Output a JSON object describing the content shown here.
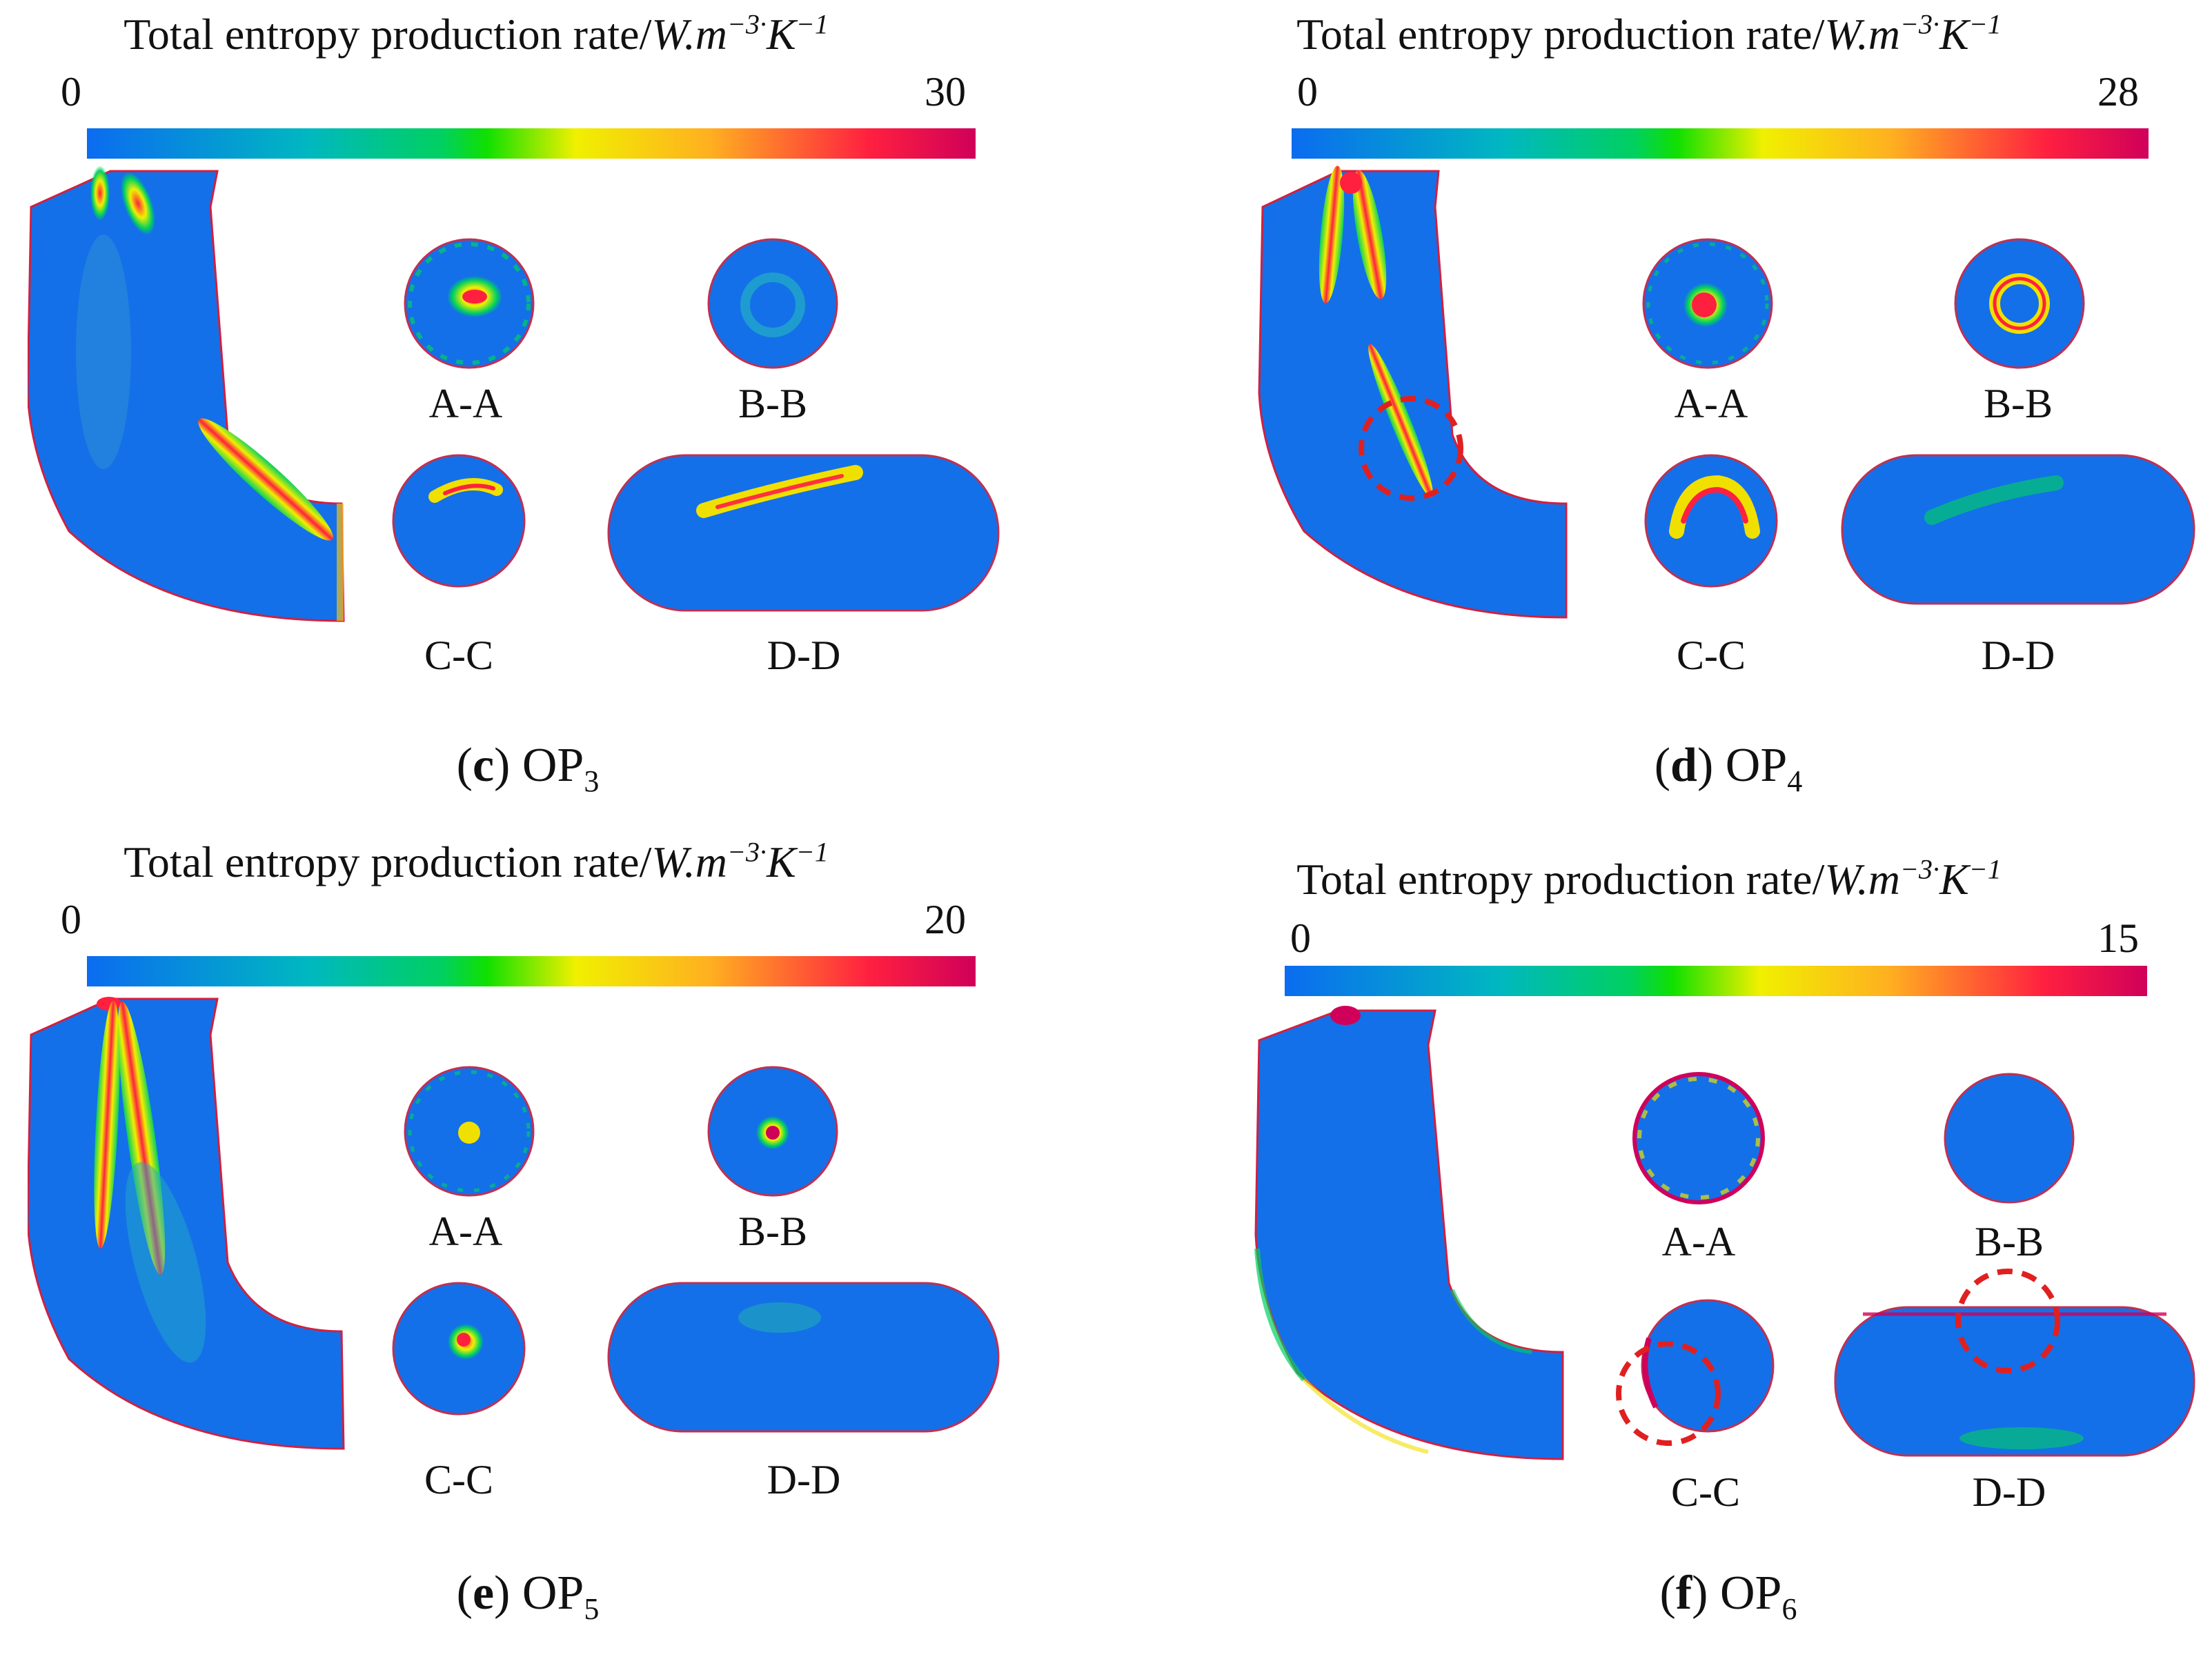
{
  "colorbar_title": "Total entropy production rate/",
  "colorbar_unit_w": "W.m",
  "colorbar_exp1": "−3·",
  "colorbar_unit_k": "K",
  "colorbar_exp2": "−1",
  "colormap": [
    "#0b6cf0",
    "#00b4b4",
    "#00d060",
    "#00e000",
    "#f0f000",
    "#ffb020",
    "#ff2040",
    "#d0005a"
  ],
  "highlight_color": "#e02020",
  "panels": [
    {
      "letter": "c",
      "op": "OP",
      "op_sub": "3",
      "min": "0",
      "max": "30",
      "sections": {
        "aa": "A-A",
        "bb": "B-B",
        "cc": "C-C",
        "dd": "D-D"
      }
    },
    {
      "letter": "d",
      "op": "OP",
      "op_sub": "4",
      "min": "0",
      "max": "28",
      "sections": {
        "aa": "A-A",
        "bb": "B-B",
        "cc": "C-C",
        "dd": "D-D"
      }
    },
    {
      "letter": "e",
      "op": "OP",
      "op_sub": "5",
      "min": "0",
      "max": "20",
      "sections": {
        "aa": "A-A",
        "bb": "B-B",
        "cc": "C-C",
        "dd": "D-D"
      }
    },
    {
      "letter": "f",
      "op": "OP",
      "op_sub": "6",
      "min": "0",
      "max": "15",
      "sections": {
        "aa": "A-A",
        "bb": "B-B",
        "cc": "C-C",
        "dd": "D-D"
      }
    }
  ]
}
